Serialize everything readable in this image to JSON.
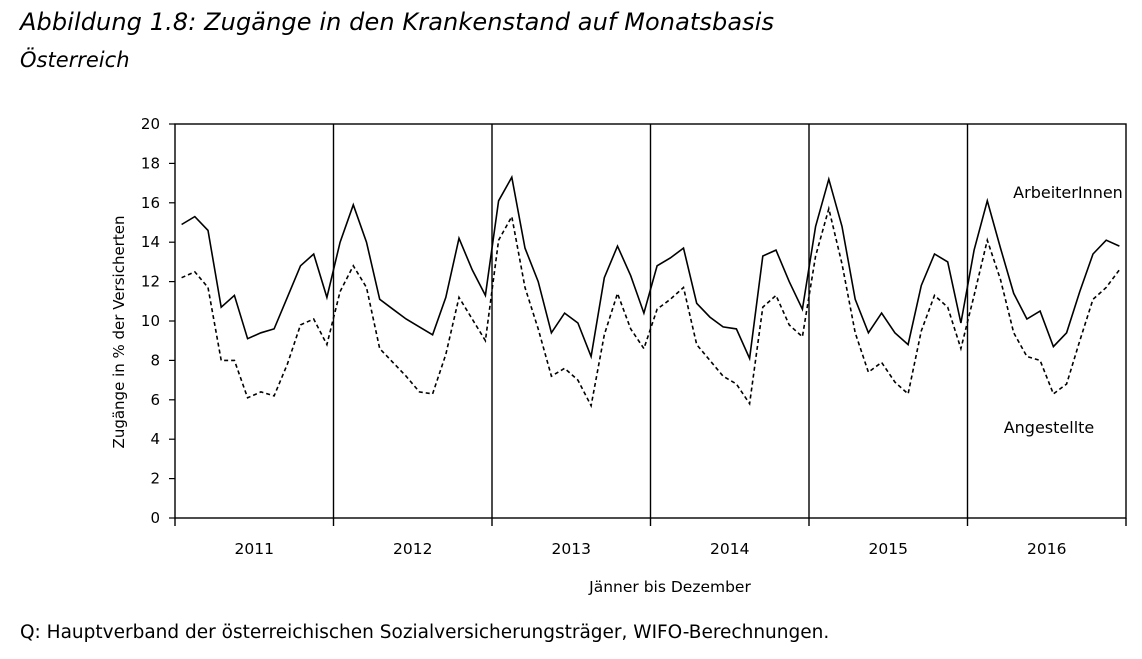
{
  "header": {
    "title": "Abbildung 1.8: Zugänge in den Krankenstand auf Monatsbasis",
    "subtitle": "Österreich"
  },
  "footer": {
    "source": "Q: Hauptverband der österreichischen Sozialversicherungsträger, WIFO-Berechnungen."
  },
  "chart_data": {
    "type": "line",
    "xlabel": "Jänner bis Dezember",
    "ylabel": "Zugänge in % der Versicherten",
    "ylim": [
      0,
      20
    ],
    "yticks": [
      0,
      2,
      4,
      6,
      8,
      10,
      12,
      14,
      16,
      18,
      20
    ],
    "grid": false,
    "legend": "inline labels",
    "years": [
      "2011",
      "2012",
      "2013",
      "2014",
      "2015",
      "2016"
    ],
    "months_per_year": 12,
    "series": [
      {
        "name": "ArbeiterInnen",
        "style": "solid",
        "values": [
          14.9,
          15.3,
          14.6,
          10.7,
          11.3,
          9.1,
          9.4,
          9.6,
          11.2,
          12.8,
          13.4,
          11.2,
          14.0,
          15.9,
          14.0,
          11.1,
          10.6,
          10.1,
          9.7,
          9.3,
          11.2,
          14.2,
          12.6,
          11.3,
          16.1,
          17.3,
          13.7,
          12.0,
          9.4,
          10.4,
          9.9,
          8.2,
          12.2,
          13.8,
          12.3,
          10.4,
          12.8,
          13.2,
          13.7,
          10.9,
          10.2,
          9.7,
          9.6,
          8.1,
          13.3,
          13.6,
          12.0,
          10.6,
          14.8,
          17.2,
          14.8,
          11.1,
          9.4,
          10.4,
          9.4,
          8.8,
          11.8,
          13.4,
          13.0,
          9.9,
          13.6,
          16.1,
          13.7,
          11.4,
          10.1,
          10.5,
          8.7,
          9.4,
          11.5,
          13.4,
          14.1,
          13.8
        ]
      },
      {
        "name": "Angestellte",
        "style": "dashed",
        "values": [
          12.2,
          12.5,
          11.7,
          8.0,
          8.0,
          6.1,
          6.4,
          6.2,
          7.8,
          9.8,
          10.1,
          8.8,
          11.5,
          12.8,
          11.7,
          8.6,
          7.9,
          7.2,
          6.4,
          6.3,
          8.3,
          11.2,
          10.1,
          9.0,
          14.1,
          15.3,
          11.7,
          9.6,
          7.2,
          7.6,
          7.0,
          5.7,
          9.3,
          11.4,
          9.6,
          8.6,
          10.6,
          11.1,
          11.7,
          8.8,
          8.0,
          7.2,
          6.8,
          5.8,
          10.7,
          11.3,
          9.8,
          9.2,
          13.3,
          15.7,
          12.9,
          9.4,
          7.4,
          7.9,
          6.9,
          6.3,
          9.5,
          11.3,
          10.7,
          8.6,
          11.3,
          14.1,
          12.1,
          9.4,
          8.2,
          8.0,
          6.3,
          6.8,
          9.0,
          11.1,
          11.7,
          12.6
        ]
      }
    ]
  }
}
